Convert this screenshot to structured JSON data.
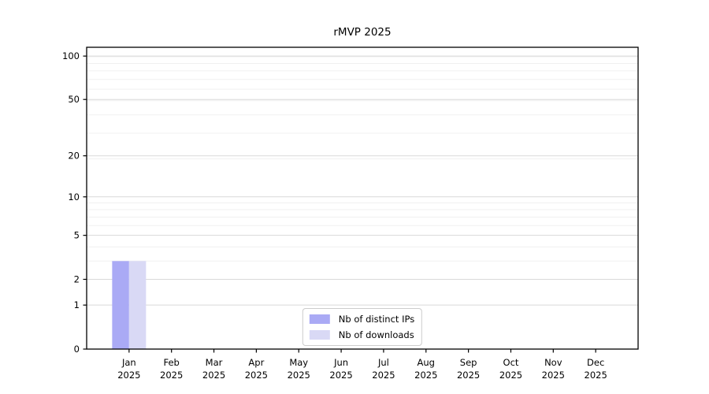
{
  "chart_data": {
    "type": "bar",
    "title": "rMVP 2025",
    "categories": [
      {
        "label": "Jan",
        "sub": "2025"
      },
      {
        "label": "Feb",
        "sub": "2025"
      },
      {
        "label": "Mar",
        "sub": "2025"
      },
      {
        "label": "Apr",
        "sub": "2025"
      },
      {
        "label": "May",
        "sub": "2025"
      },
      {
        "label": "Jun",
        "sub": "2025"
      },
      {
        "label": "Jul",
        "sub": "2025"
      },
      {
        "label": "Aug",
        "sub": "2025"
      },
      {
        "label": "Sep",
        "sub": "2025"
      },
      {
        "label": "Oct",
        "sub": "2025"
      },
      {
        "label": "Nov",
        "sub": "2025"
      },
      {
        "label": "Dec",
        "sub": "2025"
      }
    ],
    "series": [
      {
        "name": "Nb of distinct IPs",
        "color": "#aaaaf5",
        "values": [
          3,
          0,
          0,
          0,
          0,
          0,
          0,
          0,
          0,
          0,
          0,
          0
        ]
      },
      {
        "name": "Nb of downloads",
        "color": "#d9d9f5",
        "values": [
          3,
          0,
          0,
          0,
          0,
          0,
          0,
          0,
          0,
          0,
          0,
          0
        ]
      }
    ],
    "xlabel": "",
    "ylabel": "",
    "yscale": "log1p",
    "yticks": [
      0,
      1,
      2,
      5,
      10,
      20,
      50,
      100
    ],
    "minor_gridlines": [
      3,
      4,
      6,
      7,
      8,
      9,
      19,
      29,
      39,
      49,
      59,
      69,
      79,
      89,
      99
    ],
    "ylim": [
      0,
      115
    ],
    "grid": true,
    "legend_position": "lower center",
    "colors": {
      "grid_major": "#d9d9d9",
      "grid_minor": "#f0f0f0",
      "axis": "#000000",
      "background": "#ffffff"
    }
  }
}
